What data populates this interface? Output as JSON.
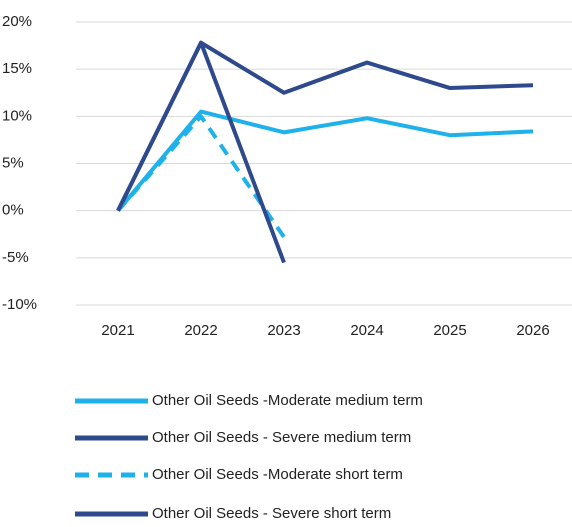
{
  "chart_data": {
    "type": "line",
    "categories": [
      "2021",
      "2022",
      "2023",
      "2024",
      "2025",
      "2026"
    ],
    "ylim": [
      -10,
      20
    ],
    "yticks": [
      {
        "value": -10,
        "label": "-10%"
      },
      {
        "value": -5,
        "label": "-5%"
      },
      {
        "value": 0,
        "label": "0%"
      },
      {
        "value": 5,
        "label": "5%"
      },
      {
        "value": 10,
        "label": "10%"
      },
      {
        "value": 15,
        "label": "15%"
      },
      {
        "value": 20,
        "label": "20%"
      }
    ],
    "grid": true,
    "legend": "bottom",
    "series": [
      {
        "name": "Other Oil Seeds -Moderate medium term",
        "color": "#1fb2ea",
        "dashed": false,
        "values": [
          0,
          10.5,
          8.3,
          9.8,
          8.0,
          8.4
        ]
      },
      {
        "name": "Other Oil Seeds - Severe medium term",
        "color": "#2e4a8c",
        "dashed": false,
        "values": [
          0,
          17.8,
          12.5,
          15.7,
          13.0,
          13.3
        ]
      },
      {
        "name": "Other Oil Seeds -Moderate short term",
        "color": "#1fb2ea",
        "dashed": true,
        "values": [
          0,
          10.0,
          -2.8,
          null,
          null,
          null
        ]
      },
      {
        "name": "Other Oil Seeds - Severe short term",
        "color": "#2e4a8c",
        "dashed": false,
        "values": [
          0,
          17.8,
          -5.5,
          null,
          null,
          null
        ]
      }
    ]
  }
}
